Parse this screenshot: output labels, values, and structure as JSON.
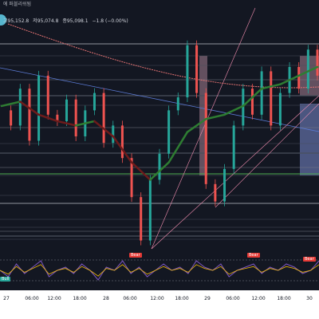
{
  "header": {
    "title_fragment": "에 퍼블리쉬됨",
    "ohlc": {
      "high": "고95,152.8",
      "low": "저95,074.8",
      "close": "종95,098.1",
      "change": "−1.8 (−0.00%)"
    }
  },
  "chart_data": {
    "type": "line",
    "x_ticks": [
      "27",
      "06:00",
      "12:00",
      "18:00",
      "28",
      "06:00",
      "12:00",
      "18:00",
      "29",
      "06:00",
      "12:00",
      "18:00",
      "30"
    ],
    "price_series": [
      {
        "t": 0,
        "v": 0.62
      },
      {
        "t": 3,
        "v": 0.55
      },
      {
        "t": 6,
        "v": 0.72
      },
      {
        "t": 9,
        "v": 0.48
      },
      {
        "t": 12,
        "v": 0.78
      },
      {
        "t": 15,
        "v": 0.6
      },
      {
        "t": 18,
        "v": 0.57
      },
      {
        "t": 21,
        "v": 0.67
      },
      {
        "t": 24,
        "v": 0.5
      },
      {
        "t": 27,
        "v": 0.62
      },
      {
        "t": 30,
        "v": 0.7
      },
      {
        "t": 33,
        "v": 0.47
      },
      {
        "t": 36,
        "v": 0.55
      },
      {
        "t": 39,
        "v": 0.4
      },
      {
        "t": 42,
        "v": 0.22
      },
      {
        "t": 45,
        "v": 0.02
      },
      {
        "t": 48,
        "v": 0.3
      },
      {
        "t": 51,
        "v": 0.42
      },
      {
        "t": 54,
        "v": 0.62
      },
      {
        "t": 57,
        "v": 0.68
      },
      {
        "t": 60,
        "v": 0.92
      },
      {
        "t": 63,
        "v": 0.7
      },
      {
        "t": 66,
        "v": 0.28
      },
      {
        "t": 69,
        "v": 0.2
      },
      {
        "t": 72,
        "v": 0.35
      },
      {
        "t": 75,
        "v": 0.55
      },
      {
        "t": 78,
        "v": 0.72
      },
      {
        "t": 81,
        "v": 0.6
      },
      {
        "t": 84,
        "v": 0.8
      },
      {
        "t": 87,
        "v": 0.55
      },
      {
        "t": 90,
        "v": 0.7
      },
      {
        "t": 93,
        "v": 0.82
      },
      {
        "t": 96,
        "v": 0.72
      },
      {
        "t": 99,
        "v": 0.9
      },
      {
        "t": 102,
        "v": 0.78
      }
    ],
    "ma_series": [
      {
        "t": 0,
        "v": 0.64
      },
      {
        "t": 6,
        "v": 0.66
      },
      {
        "t": 12,
        "v": 0.6
      },
      {
        "t": 18,
        "v": 0.57
      },
      {
        "t": 24,
        "v": 0.55
      },
      {
        "t": 30,
        "v": 0.57
      },
      {
        "t": 36,
        "v": 0.5
      },
      {
        "t": 42,
        "v": 0.38
      },
      {
        "t": 48,
        "v": 0.3
      },
      {
        "t": 54,
        "v": 0.38
      },
      {
        "t": 60,
        "v": 0.52
      },
      {
        "t": 66,
        "v": 0.58
      },
      {
        "t": 72,
        "v": 0.6
      },
      {
        "t": 78,
        "v": 0.64
      },
      {
        "t": 84,
        "v": 0.72
      },
      {
        "t": 90,
        "v": 0.74
      },
      {
        "t": 96,
        "v": 0.78
      },
      {
        "t": 102,
        "v": 0.82
      }
    ],
    "rsi_series": [
      0.5,
      0.3,
      0.7,
      0.4,
      0.6,
      0.8,
      0.3,
      0.5,
      0.6,
      0.4,
      0.7,
      0.5,
      0.2,
      0.6,
      0.5,
      0.8,
      0.4,
      0.6,
      0.3,
      0.5,
      0.7,
      0.5,
      0.6,
      0.4,
      0.8,
      0.6,
      0.5,
      0.7,
      0.3,
      0.5,
      0.6,
      0.7,
      0.4,
      0.6,
      0.5,
      0.7,
      0.6,
      0.4,
      0.5,
      0.8
    ],
    "signals": [
      {
        "label": "Bear",
        "type": "bear"
      },
      {
        "label": "Bear",
        "type": "bear"
      },
      {
        "label": "Bear",
        "type": "bear"
      },
      {
        "label": "Bull",
        "type": "bull"
      }
    ],
    "colors": {
      "background": "#131722",
      "candle_up": "#26a69a",
      "candle_down": "#ef5350",
      "ma_up": "#2e7d32",
      "ma_down": "#6d1b1b",
      "sma_long": "#e57373",
      "trendline": "#5c7bd6",
      "support": "#4caf50",
      "fib_line": "#f48fb1",
      "zone_red": "#f8bbd0",
      "zone_blue": "#90a4f4"
    }
  }
}
